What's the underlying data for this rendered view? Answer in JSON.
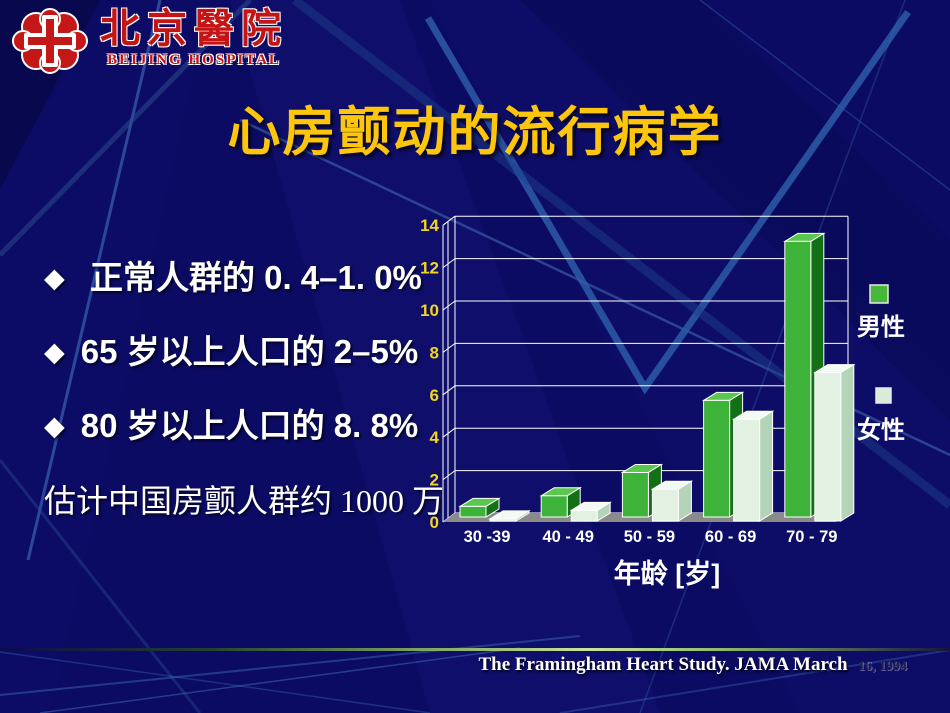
{
  "logo": {
    "name_zh": "北京醫院",
    "name_en": "BEIJING HOSPITAL"
  },
  "title": "心房颤动的流行病学",
  "bullets": [
    {
      "marker": "◆",
      "text": " 正常人群的 0. 4–1. 0%"
    },
    {
      "marker": "◆",
      "text": "65 岁以上人口的 2–5%"
    },
    {
      "marker": "◆",
      "text": "80 岁以上人口的 8. 8%"
    }
  ],
  "note": "估计中国房颤人群约 1000 万",
  "citation": {
    "text": "The Framingham Heart Study. JAMA March",
    "date": "16, 1994"
  },
  "chart_data": {
    "type": "bar",
    "style": "3d-column",
    "title": "",
    "categories": [
      "30 -39",
      "40 - 49",
      "50 - 59",
      "60 - 69",
      "70 - 79"
    ],
    "series": [
      {
        "name": "男性",
        "values": [
          0.5,
          1.0,
          2.1,
          5.5,
          13.0
        ],
        "colors": {
          "front": "#3db33a",
          "top": "#5ac74f",
          "side": "#147017",
          "swatch": "#46b838"
        }
      },
      {
        "name": "女性",
        "values": [
          0.1,
          0.5,
          1.5,
          4.8,
          7.0
        ],
        "colors": {
          "front": "#e2f1e2",
          "top": "#f3faf3",
          "side": "#b4d4ba",
          "swatch": "#d9ecd9"
        }
      }
    ],
    "xlabel": "年龄 [岁]",
    "ylabel": "",
    "ylim": [
      0,
      14
    ],
    "ytick_step": 2,
    "grid": true,
    "legend_position": "right",
    "tick_label_color": "#f2d51e",
    "category_label_color": "#ffffff",
    "gridline_color": "#ffffff",
    "floor_color": "#8a8a8a"
  }
}
